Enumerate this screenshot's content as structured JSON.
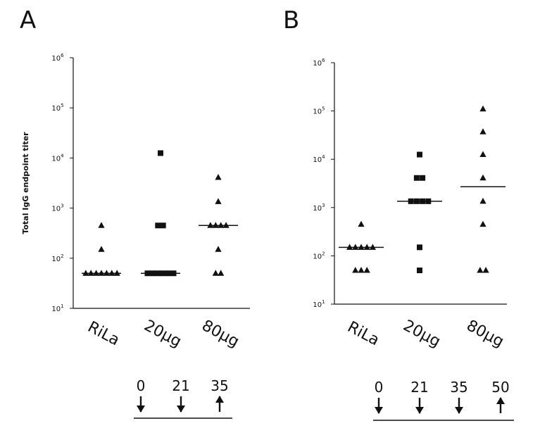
{
  "chart_data": [
    {
      "type": "scatter",
      "panel_label": "A",
      "ylabel": "Total IgG endpoint titer",
      "yscale": "log",
      "ylim": [
        10,
        1000000
      ],
      "y_ticks": [
        {
          "value": 10,
          "base": "10",
          "exp": "1"
        },
        {
          "value": 100,
          "base": "10",
          "exp": "2"
        },
        {
          "value": 1000,
          "base": "10",
          "exp": "3"
        },
        {
          "value": 10000,
          "base": "10",
          "exp": "4"
        },
        {
          "value": 100000,
          "base": "10",
          "exp": "5"
        },
        {
          "value": 1000000,
          "base": "10",
          "exp": "6"
        }
      ],
      "categories": [
        "RiLa",
        "20µg",
        "80µg"
      ],
      "series": [
        {
          "category": "RiLa",
          "marker": "triangle",
          "points": [
            50,
            50,
            50,
            50,
            50,
            50,
            50,
            150,
            450
          ],
          "median": 50
        },
        {
          "category": "20µg",
          "marker": "square",
          "points": [
            50,
            50,
            50,
            50,
            50,
            50,
            450,
            450,
            12500
          ],
          "median": 50
        },
        {
          "category": "80µg",
          "marker": "triangle",
          "points": [
            50,
            50,
            150,
            450,
            450,
            450,
            450,
            1350,
            4100
          ],
          "median": 450
        }
      ],
      "schedule": {
        "days": [
          "0",
          "21",
          "35"
        ],
        "arrows": [
          "down",
          "down",
          "up"
        ]
      }
    },
    {
      "type": "scatter",
      "panel_label": "B",
      "ylabel": "",
      "yscale": "log",
      "ylim": [
        10,
        1000000
      ],
      "y_ticks": [
        {
          "value": 10,
          "base": "10",
          "exp": "1"
        },
        {
          "value": 100,
          "base": "10",
          "exp": "2"
        },
        {
          "value": 1000,
          "base": "10",
          "exp": "3"
        },
        {
          "value": 10000,
          "base": "10",
          "exp": "4"
        },
        {
          "value": 100000,
          "base": "10",
          "exp": "5"
        },
        {
          "value": 1000000,
          "base": "10",
          "exp": "6"
        }
      ],
      "categories": [
        "RiLa",
        "20µg",
        "80µg"
      ],
      "series": [
        {
          "category": "RiLa",
          "marker": "triangle",
          "points": [
            50,
            50,
            50,
            150,
            150,
            150,
            150,
            150,
            450
          ],
          "median": 150
        },
        {
          "category": "20µg",
          "marker": "square",
          "points": [
            50,
            150,
            1350,
            1350,
            1350,
            1350,
            4100,
            4100,
            12500
          ],
          "median": 1350
        },
        {
          "category": "80µg",
          "marker": "triangle",
          "points": [
            50,
            50,
            450,
            1350,
            4100,
            12500,
            37000,
            110000
          ],
          "median": 2700
        }
      ],
      "schedule": {
        "days": [
          "0",
          "21",
          "35",
          "50"
        ],
        "arrows": [
          "down",
          "down",
          "down",
          "up"
        ]
      }
    }
  ]
}
